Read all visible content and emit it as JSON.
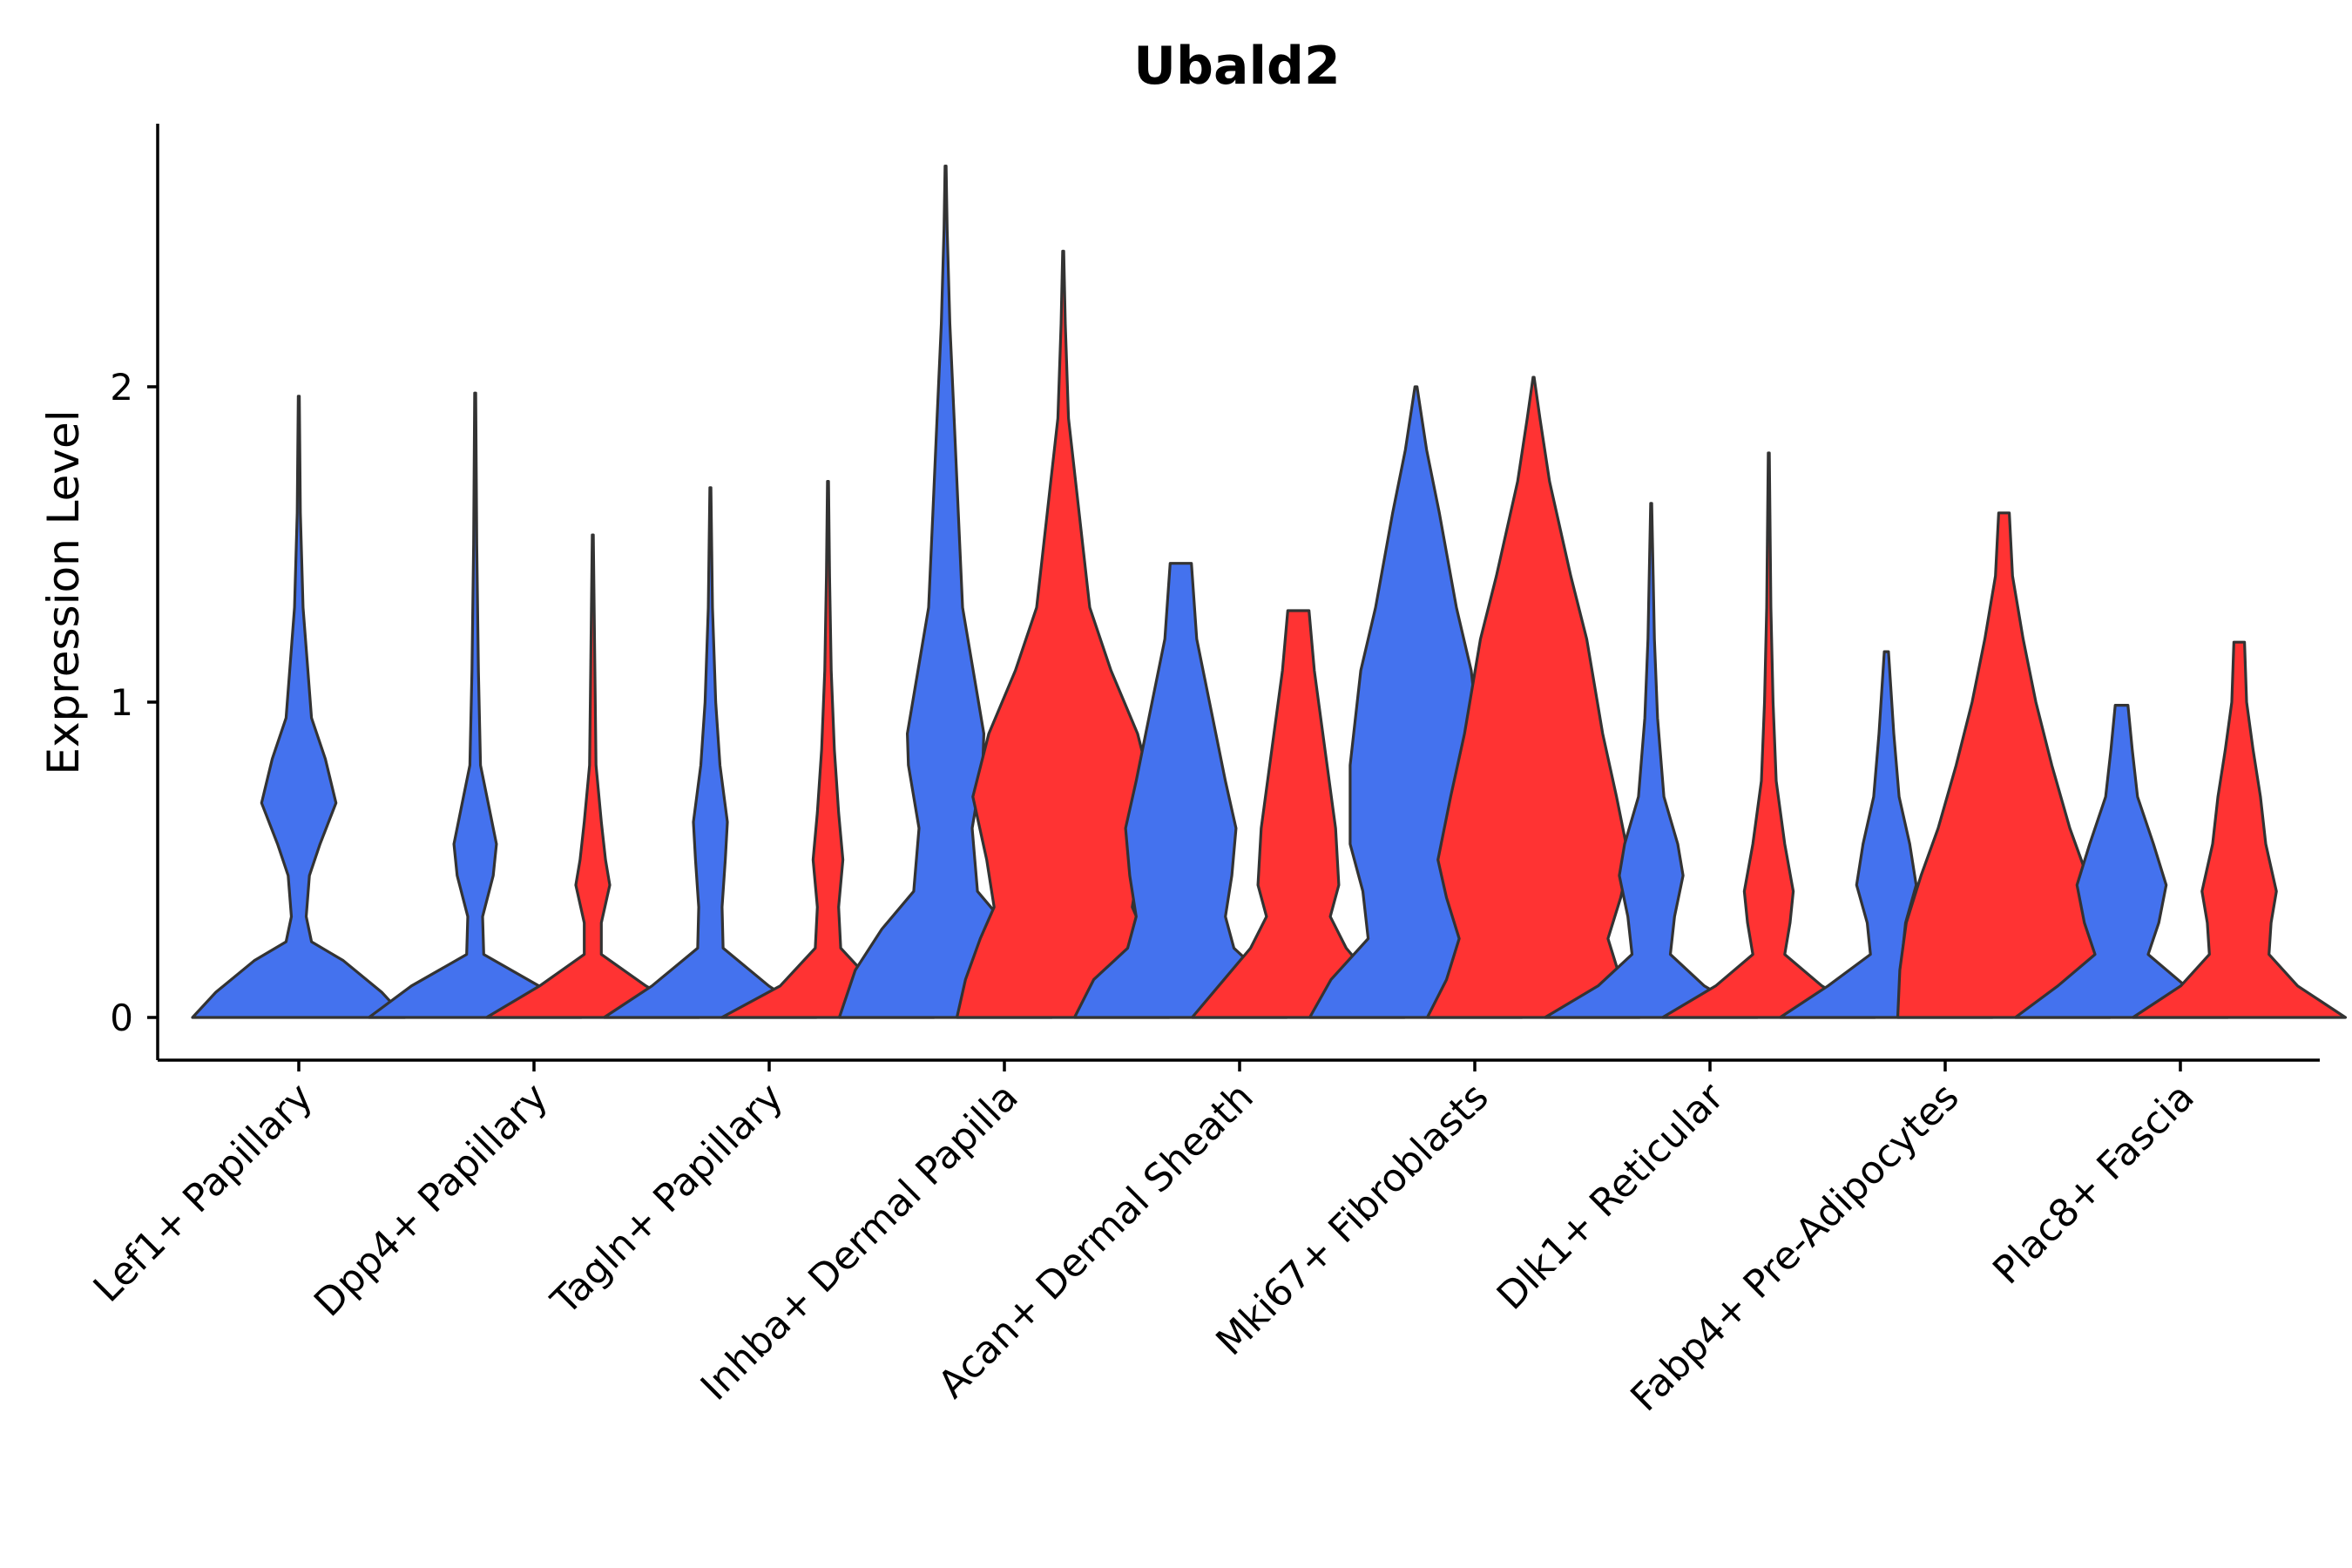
{
  "chart_data": {
    "type": "violin",
    "title": "Ubald2",
    "xlabel": "",
    "ylabel": "Expression Level",
    "ylim": [
      -0.14,
      2.85
    ],
    "yticks": [
      0,
      1,
      2
    ],
    "grid": false,
    "legend": "none",
    "split_colors": {
      "left": "#4472EE",
      "right": "#FF3333"
    },
    "categories": [
      "Lef1+ Papillary",
      "Dpp4+ Papillary",
      "Tagln+ Papillary",
      "Inhba+ Dermal Papilla",
      "Acan+ Dermal Sheath",
      "Mki67+ Fibroblasts",
      "Dlk1+ Reticular",
      "Fabp4+ Pre-Adipocytes",
      "Plac8+ Fascia"
    ],
    "groups": [
      {
        "category": "Lef1+ Papillary",
        "left": {
          "max": 1.97,
          "profile": [
            [
              0,
              1.0
            ],
            [
              0.08,
              0.78
            ],
            [
              0.18,
              0.42
            ],
            [
              0.24,
              0.12
            ],
            [
              0.32,
              0.07
            ],
            [
              0.45,
              0.1
            ],
            [
              0.55,
              0.2
            ],
            [
              0.68,
              0.35
            ],
            [
              0.82,
              0.25
            ],
            [
              0.95,
              0.12
            ],
            [
              1.3,
              0.04
            ],
            [
              1.6,
              0.015
            ],
            [
              1.97,
              0.005
            ]
          ]
        },
        "right": null
      },
      {
        "category": "Dpp4+ Papillary",
        "left": {
          "max": 1.98,
          "profile": [
            [
              0,
              1.0
            ],
            [
              0.1,
              0.6
            ],
            [
              0.2,
              0.08
            ],
            [
              0.32,
              0.07
            ],
            [
              0.45,
              0.17
            ],
            [
              0.55,
              0.2
            ],
            [
              0.65,
              0.14
            ],
            [
              0.8,
              0.05
            ],
            [
              1.1,
              0.03
            ],
            [
              1.5,
              0.015
            ],
            [
              1.98,
              0.005
            ]
          ]
        },
        "right": {
          "max": 1.53,
          "profile": [
            [
              0,
              1.0
            ],
            [
              0.1,
              0.5
            ],
            [
              0.2,
              0.08
            ],
            [
              0.3,
              0.08
            ],
            [
              0.42,
              0.16
            ],
            [
              0.5,
              0.12
            ],
            [
              0.62,
              0.08
            ],
            [
              0.8,
              0.03
            ],
            [
              1.1,
              0.02
            ],
            [
              1.53,
              0.005
            ]
          ]
        }
      },
      {
        "category": "Tagln+ Papillary",
        "left": {
          "max": 1.68,
          "profile": [
            [
              0,
              1.0
            ],
            [
              0.1,
              0.55
            ],
            [
              0.22,
              0.12
            ],
            [
              0.35,
              0.11
            ],
            [
              0.5,
              0.14
            ],
            [
              0.62,
              0.16
            ],
            [
              0.8,
              0.09
            ],
            [
              1.0,
              0.05
            ],
            [
              1.3,
              0.02
            ],
            [
              1.68,
              0.005
            ]
          ]
        },
        "right": {
          "max": 1.7,
          "profile": [
            [
              0,
              1.0
            ],
            [
              0.1,
              0.45
            ],
            [
              0.22,
              0.12
            ],
            [
              0.35,
              0.1
            ],
            [
              0.5,
              0.14
            ],
            [
              0.65,
              0.1
            ],
            [
              0.85,
              0.06
            ],
            [
              1.1,
              0.03
            ],
            [
              1.4,
              0.015
            ],
            [
              1.7,
              0.005
            ]
          ]
        }
      },
      {
        "category": "Inhba+ Dermal Papilla",
        "left": {
          "max": 2.7,
          "profile": [
            [
              0,
              1.0
            ],
            [
              0.15,
              0.85
            ],
            [
              0.28,
              0.6
            ],
            [
              0.4,
              0.3
            ],
            [
              0.6,
              0.25
            ],
            [
              0.8,
              0.35
            ],
            [
              0.9,
              0.36
            ],
            [
              1.1,
              0.26
            ],
            [
              1.3,
              0.16
            ],
            [
              1.6,
              0.12
            ],
            [
              1.9,
              0.08
            ],
            [
              2.2,
              0.04
            ],
            [
              2.5,
              0.015
            ],
            [
              2.7,
              0.005
            ]
          ]
        },
        "right": {
          "max": 2.43,
          "profile": [
            [
              0,
              1.0
            ],
            [
              0.12,
              0.92
            ],
            [
              0.25,
              0.78
            ],
            [
              0.35,
              0.65
            ],
            [
              0.5,
              0.72
            ],
            [
              0.7,
              0.85
            ],
            [
              0.9,
              0.7
            ],
            [
              1.1,
              0.45
            ],
            [
              1.3,
              0.25
            ],
            [
              1.6,
              0.15
            ],
            [
              1.9,
              0.05
            ],
            [
              2.2,
              0.02
            ],
            [
              2.43,
              0.005
            ]
          ]
        }
      },
      {
        "category": "Acan+ Dermal Sheath",
        "left": {
          "max": 1.44,
          "profile": [
            [
              0,
              1.0
            ],
            [
              0.12,
              0.82
            ],
            [
              0.22,
              0.5
            ],
            [
              0.32,
              0.42
            ],
            [
              0.45,
              0.48
            ],
            [
              0.6,
              0.52
            ],
            [
              0.75,
              0.42
            ],
            [
              0.95,
              0.3
            ],
            [
              1.2,
              0.15
            ],
            [
              1.44,
              0.1
            ]
          ]
        },
        "right": {
          "max": 1.29,
          "profile": [
            [
              0,
              1.0
            ],
            [
              0.1,
              0.75
            ],
            [
              0.22,
              0.45
            ],
            [
              0.32,
              0.3
            ],
            [
              0.42,
              0.38
            ],
            [
              0.6,
              0.35
            ],
            [
              0.85,
              0.25
            ],
            [
              1.1,
              0.15
            ],
            [
              1.29,
              0.1
            ]
          ]
        }
      },
      {
        "category": "Mki67+ Fibroblasts",
        "left": {
          "max": 2.0,
          "profile": [
            [
              0,
              1.0
            ],
            [
              0.12,
              0.8
            ],
            [
              0.25,
              0.45
            ],
            [
              0.4,
              0.5
            ],
            [
              0.55,
              0.62
            ],
            [
              0.8,
              0.62
            ],
            [
              1.1,
              0.52
            ],
            [
              1.3,
              0.38
            ],
            [
              1.6,
              0.22
            ],
            [
              1.8,
              0.1
            ],
            [
              2.0,
              0.01
            ]
          ]
        },
        "right": {
          "max": 2.03,
          "profile": [
            [
              0,
              1.0
            ],
            [
              0.12,
              0.82
            ],
            [
              0.25,
              0.7
            ],
            [
              0.38,
              0.82
            ],
            [
              0.5,
              0.9
            ],
            [
              0.7,
              0.78
            ],
            [
              0.9,
              0.65
            ],
            [
              1.2,
              0.5
            ],
            [
              1.4,
              0.35
            ],
            [
              1.7,
              0.15
            ],
            [
              1.9,
              0.06
            ],
            [
              2.03,
              0.005
            ]
          ]
        }
      },
      {
        "category": "Dlk1+ Reticular",
        "left": {
          "max": 1.63,
          "profile": [
            [
              0,
              1.0
            ],
            [
              0.1,
              0.5
            ],
            [
              0.2,
              0.18
            ],
            [
              0.32,
              0.22
            ],
            [
              0.45,
              0.3
            ],
            [
              0.55,
              0.25
            ],
            [
              0.7,
              0.12
            ],
            [
              0.95,
              0.06
            ],
            [
              1.2,
              0.03
            ],
            [
              1.63,
              0.005
            ]
          ]
        },
        "right": {
          "max": 1.79,
          "profile": [
            [
              0,
              1.0
            ],
            [
              0.1,
              0.5
            ],
            [
              0.2,
              0.15
            ],
            [
              0.3,
              0.2
            ],
            [
              0.4,
              0.23
            ],
            [
              0.55,
              0.15
            ],
            [
              0.75,
              0.07
            ],
            [
              1.0,
              0.04
            ],
            [
              1.3,
              0.02
            ],
            [
              1.79,
              0.005
            ]
          ]
        }
      },
      {
        "category": "Fabp4+ Pre-Adipocytes",
        "left": {
          "max": 1.16,
          "profile": [
            [
              0,
              1.0
            ],
            [
              0.1,
              0.55
            ],
            [
              0.2,
              0.15
            ],
            [
              0.3,
              0.18
            ],
            [
              0.42,
              0.28
            ],
            [
              0.55,
              0.22
            ],
            [
              0.7,
              0.12
            ],
            [
              0.9,
              0.07
            ],
            [
              1.16,
              0.02
            ]
          ]
        },
        "right": {
          "max": 1.6,
          "profile": [
            [
              0,
              1.0
            ],
            [
              0.15,
              0.98
            ],
            [
              0.3,
              0.92
            ],
            [
              0.45,
              0.78
            ],
            [
              0.6,
              0.62
            ],
            [
              0.8,
              0.45
            ],
            [
              1.0,
              0.3
            ],
            [
              1.2,
              0.18
            ],
            [
              1.4,
              0.08
            ],
            [
              1.6,
              0.05
            ]
          ]
        }
      },
      {
        "category": "Plac8+ Fascia",
        "left": {
          "max": 0.99,
          "profile": [
            [
              0,
              1.0
            ],
            [
              0.1,
              0.6
            ],
            [
              0.2,
              0.25
            ],
            [
              0.3,
              0.35
            ],
            [
              0.42,
              0.42
            ],
            [
              0.55,
              0.3
            ],
            [
              0.7,
              0.15
            ],
            [
              0.85,
              0.1
            ],
            [
              0.99,
              0.06
            ]
          ]
        },
        "right": {
          "max": 1.19,
          "profile": [
            [
              0,
              1.0
            ],
            [
              0.1,
              0.55
            ],
            [
              0.2,
              0.28
            ],
            [
              0.3,
              0.3
            ],
            [
              0.4,
              0.35
            ],
            [
              0.55,
              0.25
            ],
            [
              0.7,
              0.2
            ],
            [
              0.85,
              0.13
            ],
            [
              1.0,
              0.07
            ],
            [
              1.19,
              0.05
            ]
          ]
        }
      }
    ]
  }
}
